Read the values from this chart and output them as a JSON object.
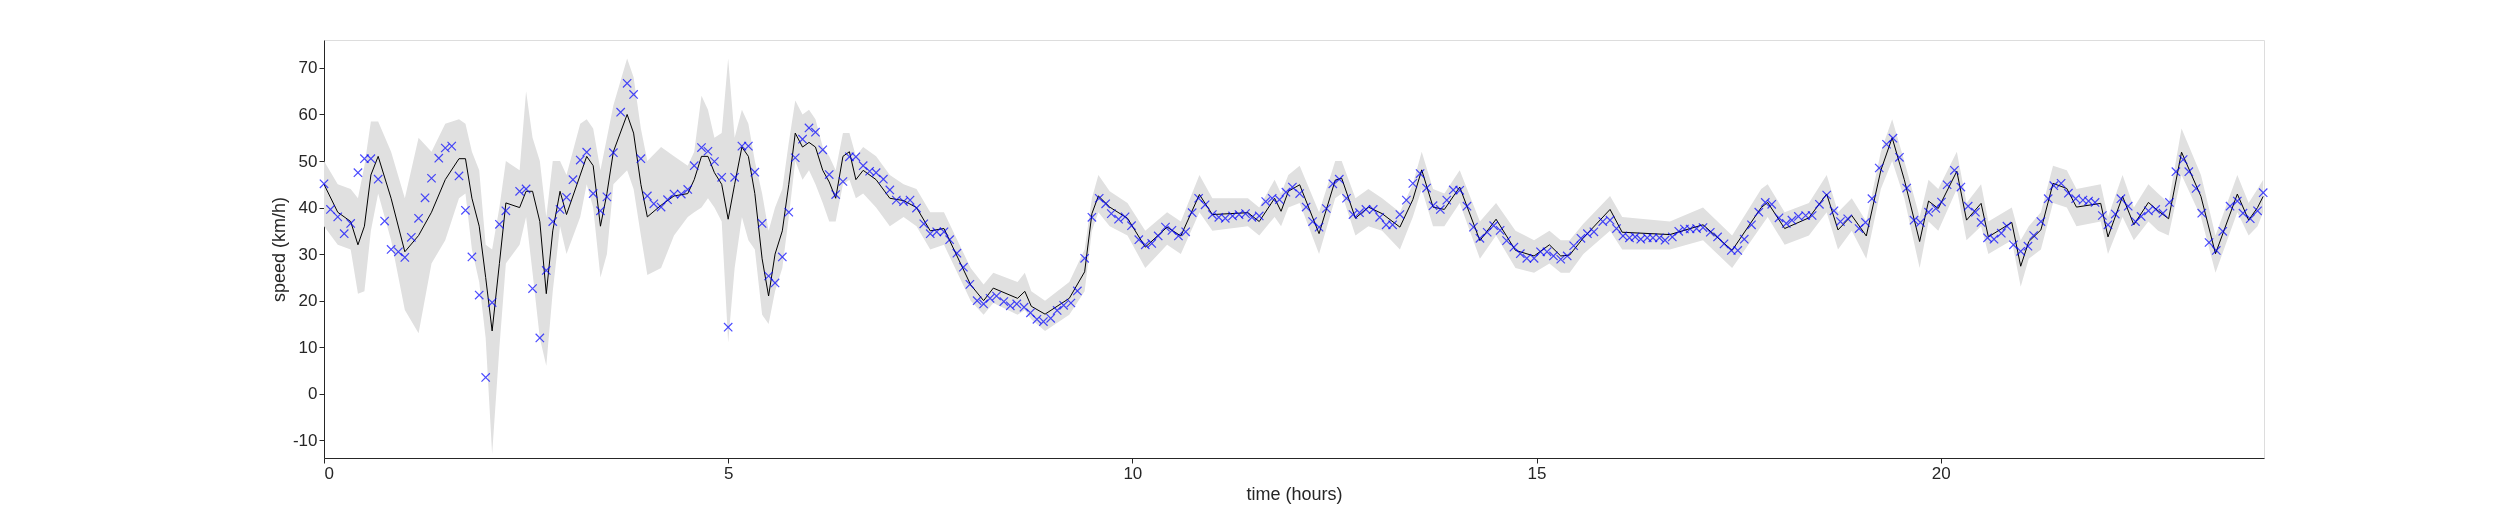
{
  "chart_data": {
    "type": "line",
    "xlabel": "time (hours)",
    "ylabel": "speed (km/h)",
    "xlim": [
      0,
      24
    ],
    "ylim": [
      -13.8,
      76
    ],
    "xticks": [
      0,
      5,
      10,
      15,
      20
    ],
    "yticks": [
      -10,
      0,
      10,
      20,
      30,
      40,
      50,
      60,
      70
    ],
    "grid": false,
    "series": [
      {
        "color": "#000000",
        "marker": "none",
        "line_style": "solid",
        "x": [
          0.0,
          0.17,
          0.33,
          0.42,
          0.5,
          0.58,
          0.67,
          0.83,
          1.0,
          1.17,
          1.33,
          1.5,
          1.67,
          1.75,
          1.83,
          1.92,
          2.0,
          2.08,
          2.17,
          2.25,
          2.42,
          2.5,
          2.58,
          2.67,
          2.75,
          2.83,
          2.92,
          3.0,
          3.17,
          3.25,
          3.33,
          3.42,
          3.5,
          3.58,
          3.75,
          3.83,
          3.92,
          4.0,
          4.17,
          4.33,
          4.5,
          4.58,
          4.67,
          4.75,
          4.83,
          4.92,
          5.0,
          5.08,
          5.17,
          5.25,
          5.33,
          5.42,
          5.5,
          5.58,
          5.67,
          5.75,
          5.83,
          5.92,
          6.0,
          6.08,
          6.17,
          6.25,
          6.33,
          6.42,
          6.5,
          6.58,
          6.67,
          6.83,
          7.0,
          7.17,
          7.33,
          7.5,
          7.67,
          8.0,
          8.16,
          8.28,
          8.58,
          8.67,
          8.75,
          8.92,
          9.22,
          9.41,
          9.5,
          9.58,
          9.72,
          9.94,
          10.16,
          10.43,
          10.6,
          10.83,
          10.99,
          11.43,
          11.57,
          11.76,
          11.84,
          11.93,
          12.07,
          12.31,
          12.51,
          12.59,
          12.76,
          12.92,
          13.09,
          13.31,
          13.47,
          13.58,
          13.72,
          13.86,
          14.05,
          14.3,
          14.5,
          14.74,
          14.97,
          15.16,
          15.3,
          15.41,
          15.58,
          15.91,
          16.06,
          16.65,
          17.06,
          17.42,
          17.78,
          17.86,
          18.07,
          18.37,
          18.59,
          18.73,
          18.9,
          19.08,
          19.26,
          19.4,
          19.55,
          19.74,
          19.85,
          19.97,
          20.2,
          20.32,
          20.5,
          20.59,
          20.88,
          20.99,
          21.09,
          21.24,
          21.39,
          21.56,
          21.68,
          21.98,
          22.07,
          22.25,
          22.39,
          22.57,
          22.69,
          22.82,
          22.98,
          23.22,
          23.4,
          23.67,
          23.81,
          23.92,
          23.99
        ],
        "values": [
          45,
          39,
          37,
          32,
          36,
          47,
          51,
          42,
          30.5,
          34,
          39,
          46,
          50.5,
          50.5,
          42,
          36,
          25,
          13.5,
          28,
          41,
          40,
          43.5,
          43.5,
          37,
          21.5,
          35,
          43.5,
          38.5,
          47,
          51,
          49,
          36,
          43,
          52,
          60,
          56,
          45,
          38,
          40.5,
          42.5,
          43,
          46,
          51,
          51,
          47.5,
          45,
          37.5,
          45,
          53,
          51,
          43,
          29,
          21,
          30,
          35,
          45,
          56,
          53,
          54,
          53,
          48,
          45.5,
          42,
          51,
          52,
          46,
          48,
          46,
          42,
          41.5,
          40,
          35,
          35.5,
          23.4,
          20,
          22.7,
          20.5,
          22,
          18.8,
          17.1,
          20.5,
          26.2,
          38.7,
          42.5,
          40.1,
          37.7,
          31.5,
          35.8,
          33.9,
          42.8,
          38.5,
          38.9,
          37,
          42,
          39.2,
          43.5,
          44.9,
          34.4,
          45.9,
          46.3,
          37.7,
          40.1,
          38.7,
          35.8,
          41.7,
          48.1,
          40.1,
          39.6,
          44.4,
          32.9,
          37.5,
          30.8,
          29.6,
          32,
          29.6,
          29.8,
          33.5,
          39.6,
          34.7,
          34.2,
          36.3,
          30.8,
          40,
          41.1,
          35.5,
          37.8,
          42.9,
          35.2,
          38.3,
          33.9,
          48,
          55,
          46,
          32.7,
          41.4,
          39.8,
          47.8,
          37.3,
          40.9,
          33.7,
          36.8,
          27.4,
          32.7,
          35.2,
          45.2,
          44.1,
          40.1,
          40.9,
          33.7,
          42.4,
          36.3,
          41.1,
          39.3,
          37.6,
          51.9,
          42.4,
          30.1,
          42.9,
          37.3,
          40,
          42.4
        ],
        "lower": [
          36,
          32,
          31,
          21.5,
          22,
          35,
          43,
          33,
          18,
          13,
          28,
          33,
          42,
          43,
          31,
          24,
          12,
          -13,
          10,
          28,
          32,
          38,
          26,
          12,
          6,
          22,
          36,
          30,
          38,
          45,
          40,
          25,
          30,
          45,
          48,
          44,
          34,
          25.5,
          27,
          34,
          38,
          39,
          40,
          42,
          40,
          37,
          11,
          27,
          38,
          33,
          31,
          17,
          15,
          22,
          27,
          38,
          50,
          46,
          48,
          45,
          41,
          37,
          37,
          45,
          46,
          42,
          43,
          40,
          36,
          38,
          36,
          31,
          32,
          20,
          17,
          19.5,
          17,
          18,
          16,
          13.5,
          17,
          22,
          35,
          39,
          36,
          34,
          27,
          32,
          30,
          39,
          35,
          36,
          34,
          38,
          36,
          40,
          41,
          30,
          42,
          43,
          34,
          36,
          35,
          31,
          38,
          44,
          36,
          36,
          41,
          29,
          34,
          27,
          26,
          28,
          26,
          26,
          30,
          35,
          31,
          31,
          33,
          27,
          36,
          38,
          32,
          34,
          39,
          31,
          35,
          29,
          44,
          50,
          42,
          27,
          37,
          35,
          44,
          33,
          36,
          30,
          33,
          23,
          29,
          31,
          41,
          40,
          36,
          37,
          30,
          38,
          33,
          37,
          35,
          34,
          47,
          38,
          26,
          39,
          34,
          36,
          39
        ],
        "upper": [
          50,
          45,
          44,
          42,
          49,
          58.5,
          58.5,
          52,
          42,
          55,
          52,
          58,
          59,
          58,
          52,
          48,
          32,
          31,
          40,
          50,
          48,
          65,
          55,
          50,
          38,
          50,
          50,
          47,
          58,
          59,
          57,
          48,
          55,
          62,
          72,
          68,
          57,
          50,
          53,
          51,
          49,
          52,
          64,
          61,
          55,
          56,
          72,
          55,
          61,
          58,
          50,
          43,
          35,
          40,
          44,
          54,
          63,
          60,
          61,
          59,
          53,
          51,
          48,
          56,
          56,
          51,
          53,
          51,
          47,
          45,
          44,
          39,
          39,
          27,
          23.5,
          26,
          24,
          26,
          22,
          20,
          24,
          31,
          42,
          47,
          43.5,
          41,
          35,
          39,
          37,
          47,
          42,
          42,
          40,
          46,
          43,
          47,
          49,
          39,
          50,
          50,
          42,
          44,
          42,
          39,
          45,
          52,
          44,
          43,
          48,
          37,
          41,
          35,
          33,
          35,
          33,
          33,
          36.5,
          42.5,
          38,
          37,
          40,
          34,
          44,
          45,
          39,
          41,
          47,
          39,
          42,
          37,
          52,
          59,
          50,
          38,
          46,
          44,
          52,
          41,
          45,
          37,
          40,
          33,
          36,
          39,
          49,
          48,
          44,
          45,
          38,
          47,
          40,
          45,
          43,
          41,
          57,
          47,
          34,
          47,
          41,
          44,
          46
        ]
      },
      {
        "type": "scatter",
        "color": "#0000ff",
        "marker": "cross",
        "x": [
          0.0,
          0.08,
          0.17,
          0.25,
          0.33,
          0.42,
          0.5,
          0.58,
          0.67,
          0.75,
          0.83,
          0.92,
          1.0,
          1.08,
          1.17,
          1.25,
          1.33,
          1.42,
          1.5,
          1.58,
          1.67,
          1.75,
          1.83,
          1.92,
          2.0,
          2.08,
          2.17,
          2.25,
          2.42,
          2.5,
          2.58,
          2.67,
          2.75,
          2.83,
          2.92,
          3.0,
          3.08,
          3.17,
          3.25,
          3.33,
          3.42,
          3.5,
          3.58,
          3.67,
          3.75,
          3.83,
          3.92,
          4.0,
          4.08,
          4.17,
          4.25,
          4.33,
          4.42,
          4.5,
          4.58,
          4.67,
          4.75,
          4.83,
          4.92,
          5.0,
          5.08,
          5.17,
          5.25,
          5.33,
          5.42,
          5.5,
          5.58,
          5.67,
          5.75,
          5.83,
          5.92,
          6.0,
          6.08,
          6.17,
          6.25,
          6.33,
          6.42,
          6.5,
          6.58,
          6.67,
          6.75,
          6.83,
          6.92,
          7.0,
          7.08,
          7.17,
          7.25,
          7.33,
          7.42,
          7.5,
          7.58,
          7.67,
          7.74,
          7.83,
          7.91,
          7.99,
          8.08,
          8.16,
          8.24,
          8.32,
          8.41,
          8.49,
          8.57,
          8.66,
          8.74,
          8.82,
          8.9,
          8.99,
          9.07,
          9.15,
          9.24,
          9.32,
          9.41,
          9.5,
          9.59,
          9.67,
          9.74,
          9.83,
          9.91,
          9.99,
          10.08,
          10.16,
          10.24,
          10.32,
          10.41,
          10.49,
          10.57,
          10.66,
          10.74,
          10.82,
          10.9,
          10.99,
          11.07,
          11.15,
          11.24,
          11.32,
          11.4,
          11.48,
          11.57,
          11.65,
          11.73,
          11.82,
          11.9,
          11.98,
          12.07,
          12.15,
          12.23,
          12.31,
          12.4,
          12.48,
          12.56,
          12.65,
          12.73,
          12.81,
          12.89,
          12.98,
          13.06,
          13.14,
          13.22,
          13.31,
          13.39,
          13.47,
          13.56,
          13.64,
          13.72,
          13.81,
          13.89,
          13.97,
          14.05,
          14.14,
          14.22,
          14.3,
          14.39,
          14.47,
          14.55,
          14.63,
          14.72,
          14.8,
          14.88,
          14.97,
          15.05,
          15.13,
          15.21,
          15.3,
          15.38,
          15.46,
          15.55,
          15.63,
          15.71,
          15.82,
          15.91,
          15.99,
          16.07,
          16.15,
          16.22,
          16.29,
          16.37,
          16.44,
          16.52,
          16.59,
          16.68,
          16.76,
          16.83,
          16.9,
          16.98,
          17.06,
          17.15,
          17.24,
          17.32,
          17.41,
          17.49,
          17.57,
          17.66,
          17.75,
          17.83,
          17.91,
          18.0,
          18.09,
          18.16,
          18.24,
          18.33,
          18.41,
          18.5,
          18.59,
          18.68,
          18.76,
          18.85,
          18.99,
          19.07,
          19.15,
          19.24,
          19.33,
          19.41,
          19.49,
          19.58,
          19.67,
          19.75,
          19.85,
          19.94,
          20.01,
          20.08,
          20.17,
          20.25,
          20.34,
          20.43,
          20.5,
          20.58,
          20.66,
          20.75,
          20.82,
          20.9,
          20.99,
          21.08,
          21.15,
          21.24,
          21.33,
          21.4,
          21.49,
          21.58,
          21.67,
          21.76,
          21.83,
          21.91,
          22.0,
          22.07,
          22.16,
          22.23,
          22.32,
          22.41,
          22.48,
          22.57,
          22.66,
          22.75,
          22.83,
          22.91,
          23.0,
          23.07,
          23.16,
          23.23,
          23.32,
          23.41,
          23.49,
          23.58,
          23.67,
          23.74,
          23.83,
          23.92,
          23.99
        ],
        "values": [
          45.1,
          39.6,
          38,
          34.4,
          36.6,
          47.5,
          50.5,
          50.5,
          46.1,
          37.1,
          31,
          30.5,
          29.3,
          33.6,
          37.7,
          42.1,
          46.3,
          50.6,
          52.8,
          53.2,
          46.8,
          39.4,
          29.4,
          21.2,
          3.5,
          19.6,
          36.4,
          39.3,
          43.5,
          44,
          22.6,
          12,
          26.5,
          37,
          39.6,
          42.2,
          46,
          50.2,
          51.9,
          43,
          39.3,
          42.3,
          51.8,
          60.5,
          66.7,
          64.3,
          50.5,
          42.5,
          40.8,
          40.1,
          41.7,
          42.9,
          42.9,
          43.9,
          49,
          52.9,
          52.1,
          49.9,
          46.5,
          14.3,
          46.5,
          53.2,
          53.2,
          47.6,
          36.6,
          25.3,
          23.8,
          29.4,
          39,
          50.7,
          54.7,
          57.1,
          56.2,
          52.4,
          47.1,
          42.8,
          45.6,
          50.9,
          50.9,
          49,
          47.8,
          47.5,
          46.1,
          43.8,
          41.6,
          41.3,
          41.6,
          39.9,
          36.5,
          34.4,
          34.8,
          34.8,
          33.1,
          30.2,
          27.2,
          23.5,
          20,
          19.3,
          20.5,
          21,
          19.8,
          18.9,
          19.3,
          18.6,
          17.4,
          16,
          15.5,
          16.2,
          17.9,
          19,
          19.5,
          22.1,
          29.1,
          37.9,
          42,
          40.8,
          38.7,
          37.5,
          38,
          36.1,
          33.1,
          32,
          32.3,
          33.9,
          35.8,
          35.1,
          33.9,
          34.8,
          38.9,
          42,
          40.6,
          38.5,
          37.9,
          37.7,
          38.2,
          38.5,
          38.7,
          37.9,
          38.2,
          41.3,
          42,
          41.7,
          43.3,
          44.4,
          43,
          40.1,
          37,
          35.8,
          39.8,
          45.1,
          46.1,
          42,
          38.5,
          38.9,
          39.6,
          39.6,
          37.9,
          36.3,
          36.3,
          38.5,
          41.6,
          45.2,
          47.3,
          44.2,
          40.4,
          39.6,
          41.6,
          43.8,
          43.7,
          40.3,
          35.8,
          33.4,
          34.7,
          36.1,
          35.1,
          32.9,
          31.5,
          30.1,
          29.1,
          29.1,
          30.5,
          30.5,
          29.6,
          28.9,
          29.6,
          31.8,
          33.4,
          34.4,
          34.8,
          37,
          37.3,
          35.5,
          33.9,
          33.5,
          33.7,
          33.2,
          33.5,
          33.5,
          33.5,
          33,
          33.7,
          34.9,
          35.4,
          35.4,
          35.5,
          35.7,
          34.7,
          33.7,
          32.2,
          30.8,
          30.8,
          33.2,
          36.3,
          39,
          41.1,
          40.7,
          37.8,
          36.6,
          37.3,
          38.1,
          38.3,
          38.3,
          40.7,
          42.7,
          39.3,
          37,
          37.6,
          35.5,
          36.8,
          41.9,
          48.5,
          53.6,
          54.9,
          50.8,
          44.2,
          37.3,
          36.8,
          39,
          39.8,
          41.2,
          44.9,
          48,
          44.4,
          40.3,
          39,
          36.8,
          33.5,
          33.2,
          34.5,
          36,
          32,
          30.6,
          31.7,
          34,
          37,
          41.9,
          44.7,
          45.2,
          43.1,
          41.9,
          41.6,
          41.4,
          41.1,
          38.3,
          36.3,
          38.6,
          41.9,
          40.3,
          37,
          38.1,
          39.3,
          39.6,
          38.8,
          41.1,
          47.7,
          50.3,
          47.7,
          44.1,
          38.8,
          32.5,
          30.8,
          34.9,
          40.3,
          41.4,
          38.8,
          37.6,
          39.3,
          43.2
        ]
      }
    ]
  }
}
